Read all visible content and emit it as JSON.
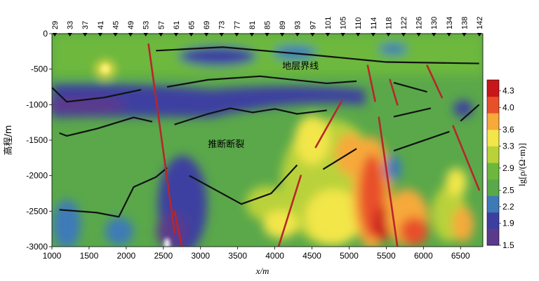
{
  "chart_data": {
    "type": "heatmap",
    "xlabel": "x/m",
    "ylabel": "高程/m",
    "colorbar_label": "lg[ρ/(Ω·m)]",
    "xlim": [
      1000,
      6800
    ],
    "ylim": [
      -3000,
      0
    ],
    "x_ticks": [
      1000,
      1500,
      2000,
      2500,
      3000,
      3500,
      4000,
      4500,
      5000,
      5500,
      6000,
      6500
    ],
    "y_ticks": [
      0,
      -500,
      -1000,
      -1500,
      -2000,
      -2500,
      -3000
    ],
    "colorbar_ticks": [
      4.3,
      4.0,
      3.6,
      3.3,
      2.9,
      2.5,
      2.2,
      1.9,
      1.5
    ],
    "colorbar_range": [
      1.5,
      4.5
    ],
    "colors": [
      "#5b3a8c",
      "#3d3fa0",
      "#3e7ab8",
      "#5aa84a",
      "#6db83c",
      "#b9d23a",
      "#f2e64a",
      "#f7a93a",
      "#e8502a",
      "#c9161a"
    ],
    "stations": [
      29,
      33,
      37,
      41,
      45,
      49,
      53,
      57,
      61,
      65,
      69,
      73,
      77,
      81,
      85,
      89,
      93,
      97,
      101,
      105,
      110,
      114,
      118,
      122,
      126,
      130,
      134,
      138,
      142
    ],
    "annotations": [
      {
        "text": "地层界线",
        "x": 4100,
        "y": -500
      },
      {
        "text": "推断断裂",
        "x": 3100,
        "y": -1600
      }
    ],
    "stratum_lines": [
      [
        [
          2400,
          -240
        ],
        [
          3300,
          -190
        ],
        [
          4500,
          -300
        ],
        [
          5500,
          -400
        ],
        [
          6750,
          -420
        ]
      ],
      [
        [
          1000,
          -760
        ],
        [
          1200,
          -960
        ],
        [
          1700,
          -900
        ],
        [
          2200,
          -790
        ]
      ],
      [
        [
          2550,
          -750
        ],
        [
          3100,
          -650
        ],
        [
          3800,
          -600
        ],
        [
          4700,
          -700
        ],
        [
          5100,
          -670
        ]
      ],
      [
        [
          5600,
          -690
        ],
        [
          6050,
          -820
        ]
      ],
      [
        [
          1100,
          -1400
        ],
        [
          1200,
          -1440
        ],
        [
          1600,
          -1340
        ],
        [
          2100,
          -1180
        ],
        [
          2350,
          -1240
        ]
      ],
      [
        [
          2650,
          -1280
        ],
        [
          3100,
          -1130
        ],
        [
          3400,
          -1050
        ],
        [
          3700,
          -1110
        ],
        [
          4000,
          -1060
        ],
        [
          4300,
          -1130
        ],
        [
          4700,
          -1080
        ]
      ],
      [
        [
          5600,
          -1170
        ],
        [
          6100,
          -1050
        ]
      ],
      [
        [
          5600,
          -1650
        ],
        [
          6350,
          -1380
        ]
      ],
      [
        [
          6500,
          -1230
        ],
        [
          6750,
          -1000
        ]
      ],
      [
        [
          1100,
          -2480
        ],
        [
          1600,
          -2520
        ],
        [
          1900,
          -2580
        ],
        [
          2100,
          -2160
        ],
        [
          2400,
          -2020
        ],
        [
          2550,
          -1890
        ]
      ],
      [
        [
          2850,
          -2000
        ],
        [
          3200,
          -2200
        ],
        [
          3550,
          -2400
        ],
        [
          3950,
          -2250
        ],
        [
          4300,
          -1850
        ]
      ],
      [
        [
          4650,
          -1910
        ],
        [
          5100,
          -1620
        ]
      ]
    ],
    "fault_lines": [
      [
        [
          2300,
          -150
        ],
        [
          2650,
          -2800
        ]
      ],
      [
        [
          2650,
          -2500
        ],
        [
          2750,
          -3000
        ]
      ],
      [
        [
          4050,
          -3000
        ],
        [
          4350,
          -2000
        ]
      ],
      [
        [
          4550,
          -1600
        ],
        [
          4900,
          -950
        ]
      ],
      [
        [
          5250,
          -450
        ],
        [
          5350,
          -950
        ]
      ],
      [
        [
          5400,
          -1180
        ],
        [
          5650,
          -3000
        ]
      ],
      [
        [
          5550,
          -650
        ],
        [
          5650,
          -1000
        ]
      ],
      [
        [
          6050,
          -450
        ],
        [
          6250,
          -900
        ]
      ],
      [
        [
          6400,
          -1300
        ],
        [
          6750,
          -2200
        ]
      ]
    ]
  }
}
